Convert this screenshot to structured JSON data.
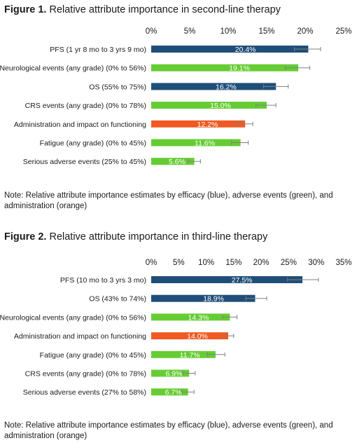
{
  "colors": {
    "efficacy": "#1f4e79",
    "adverse": "#66cc33",
    "administration": "#f05a22",
    "errorbar": "#808080",
    "axis_text": "#1a1a1a"
  },
  "figure1": {
    "title_num": "Figure 1.",
    "title_text": "Relative attribute importance in second-line therapy",
    "note": "Note: Relative attribute importance estimates by efficacy (blue), adverse events (green), and administration (orange)"
  },
  "figure2": {
    "title_num": "Figure 2.",
    "title_text": "Relative attribute importance in third-line therapy",
    "note": "Note: Relative attribute importance estimates by efficacy (blue), adverse events (green), and administration (orange)"
  },
  "chart_data": [
    {
      "type": "bar",
      "orientation": "horizontal",
      "title": "Relative attribute importance in second-line therapy",
      "xlim": [
        0,
        25
      ],
      "ticks": [
        "0%",
        "5%",
        "10%",
        "15%",
        "20%",
        "25%"
      ],
      "tick_values": [
        0,
        5,
        10,
        15,
        20,
        25
      ],
      "grid": false,
      "categories": [
        "PFS (1 yr 8 mo to 3 yrs 9 mo)",
        "Neurological events (any grade) (0% to 56%)",
        "OS (55% to 75%)",
        "CRS events (any grade) (0% to 78%)",
        "Administration and impact on functioning",
        "Fatigue (any grade) (0% to 45%)",
        "Serious adverse events (25% to 45%)"
      ],
      "values": [
        20.4,
        19.1,
        16.2,
        15.0,
        12.2,
        11.6,
        5.6
      ],
      "labels": [
        "20.4%",
        "19.1%",
        "16.2%",
        "15.0%",
        "12.2%",
        "11.6%",
        "5.6%"
      ],
      "error_low": [
        18.6,
        17.4,
        14.6,
        13.6,
        11.0,
        10.4,
        4.8
      ],
      "error_high": [
        22.0,
        20.6,
        17.8,
        16.2,
        13.2,
        12.6,
        6.4
      ],
      "groups": [
        "efficacy",
        "adverse",
        "efficacy",
        "adverse",
        "administration",
        "adverse",
        "adverse"
      ]
    },
    {
      "type": "bar",
      "orientation": "horizontal",
      "title": "Relative attribute importance in third-line therapy",
      "xlim": [
        0,
        35
      ],
      "ticks": [
        "0%",
        "5%",
        "10%",
        "15%",
        "20%",
        "25%",
        "30%",
        "35%"
      ],
      "tick_values": [
        0,
        5,
        10,
        15,
        20,
        25,
        30,
        35
      ],
      "grid": false,
      "categories": [
        "PFS (10 mo to 3 yrs 3 mo)",
        "OS (43% to 74%)",
        "Neurological events (any grade) (0% to 56%)",
        "Administration and impact on functioning",
        "Fatigue (any grade) (0% to 45%)",
        "CRS events (any grade) (0% to 78%)",
        "Serious adverse events (27% to 58%)"
      ],
      "values": [
        27.5,
        18.9,
        14.3,
        14.0,
        11.7,
        6.9,
        6.7
      ],
      "labels": [
        "27.5%",
        "18.9%",
        "14.3%",
        "14.0%",
        "11.7%",
        "6.9%",
        "6.7%"
      ],
      "error_low": [
        24.8,
        17.2,
        13.0,
        13.2,
        10.2,
        5.8,
        5.6
      ],
      "error_high": [
        30.4,
        21.0,
        15.6,
        15.0,
        13.4,
        8.0,
        7.8
      ],
      "groups": [
        "efficacy",
        "efficacy",
        "adverse",
        "administration",
        "adverse",
        "adverse",
        "adverse"
      ]
    }
  ]
}
